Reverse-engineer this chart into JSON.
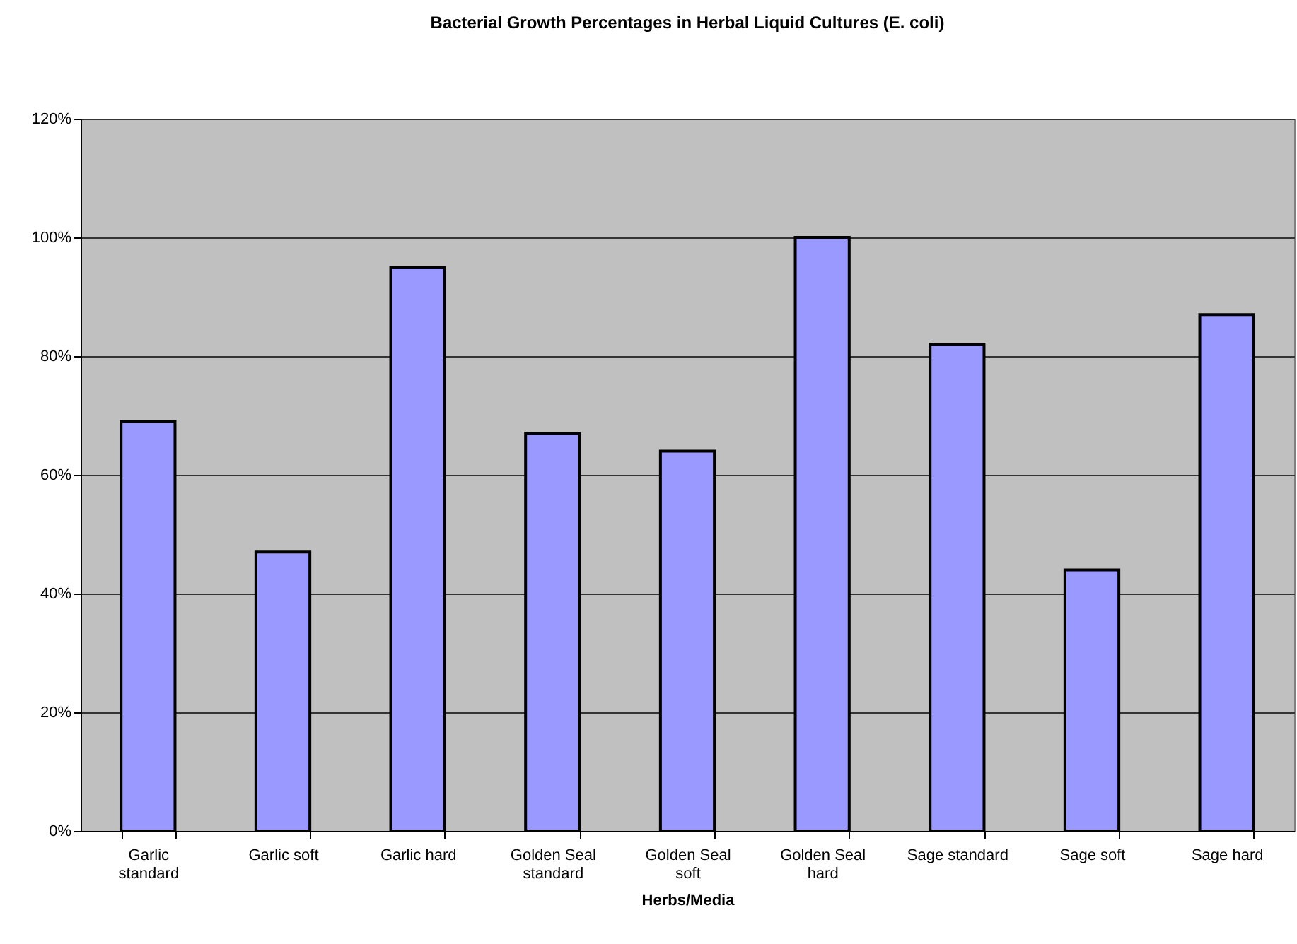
{
  "chart_data": {
    "type": "bar",
    "title": "Bacterial Growth Percentages in Herbal Liquid Cultures (E. coli)",
    "xlabel": "Herbs/Media",
    "categories": [
      "Garlic standard",
      "Garlic soft",
      "Garlic hard",
      "Golden Seal standard",
      "Golden Seal soft",
      "Golden Seal hard",
      "Sage standard",
      "Sage soft",
      "Sage hard"
    ],
    "values": [
      69,
      47,
      95,
      67,
      64,
      100,
      82,
      44,
      87
    ],
    "color": "#9999ff",
    "ylim": [
      0,
      120
    ],
    "yticks": [
      {
        "value": 0,
        "label": "0%"
      },
      {
        "value": 20,
        "label": "20%"
      },
      {
        "value": 40,
        "label": "40%"
      },
      {
        "value": 60,
        "label": "60%"
      },
      {
        "value": 80,
        "label": "80%"
      },
      {
        "value": 100,
        "label": "100%"
      },
      {
        "value": 120,
        "label": "120%"
      }
    ],
    "grid": "y"
  }
}
